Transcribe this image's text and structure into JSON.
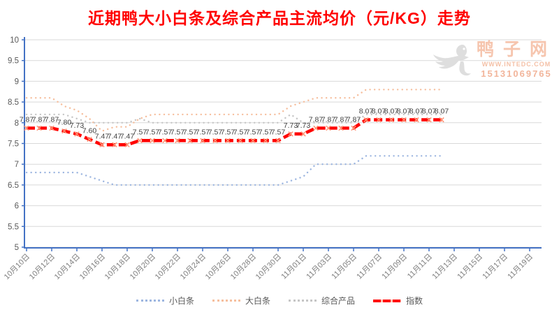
{
  "title": "近期鸭大小白条及综合产品主流均价（元/KG）走势",
  "watermark": {
    "brand": "鸭子网",
    "url": "WWW.INTEDC.COM",
    "phone": "15131069765",
    "duck_icon_color": "#DEDEDE"
  },
  "colors": {
    "title": "#FF0000",
    "axis": "#4472C4",
    "grid": "#D9D9D9",
    "tick_text": "#595959",
    "data_label": "#404040",
    "index_marker": "#FF9273"
  },
  "chart_data": {
    "type": "line",
    "title": "近期鸭大小白条及综合产品主流均价（元/KG）走势",
    "ylabel": "",
    "xlabel": "",
    "ylim": [
      5,
      10
    ],
    "y_tick_step": 0.5,
    "y_tick_labels": [
      "10",
      "9.5",
      "9",
      "8.5",
      "8",
      "7.5",
      "7",
      "6.5",
      "6",
      "5.5",
      "5"
    ],
    "grid": "horizontal",
    "legend_position": "bottom",
    "x_axis_labels": [
      "10月10日",
      "10月12日",
      "10月14日",
      "10月16日",
      "10月18日",
      "10月20日",
      "10月22日",
      "10月24日",
      "10月26日",
      "10月28日",
      "10月30日",
      "11月01日",
      "11月03日",
      "11月05日",
      "11月07日",
      "11月09日",
      "11月11日",
      "11月13日",
      "11月15日",
      "11月17日",
      "11月19日"
    ],
    "dates": [
      "10月10日",
      "10月11日",
      "10月12日",
      "10月13日",
      "10月14日",
      "10月15日",
      "10月16日",
      "10月17日",
      "10月18日",
      "10月19日",
      "10月20日",
      "10月21日",
      "10月22日",
      "10月23日",
      "10月24日",
      "10月25日",
      "10月26日",
      "10月27日",
      "10月28日",
      "10月29日",
      "10月30日",
      "10月31日",
      "11月01日",
      "11月02日",
      "11月03日",
      "11月04日",
      "11月05日",
      "11月06日",
      "11月07日",
      "11月08日",
      "11月09日",
      "11月10日",
      "11月11日",
      "11月12日"
    ],
    "series": [
      {
        "name": "小白条",
        "color": "#9DB6E0",
        "style": "dotted",
        "values": [
          6.8,
          6.8,
          6.8,
          6.8,
          6.8,
          6.7,
          6.6,
          6.5,
          6.5,
          6.5,
          6.5,
          6.5,
          6.5,
          6.5,
          6.5,
          6.5,
          6.5,
          6.5,
          6.5,
          6.5,
          6.5,
          6.6,
          6.7,
          7.0,
          7.0,
          7.0,
          7.0,
          7.2,
          7.2,
          7.2,
          7.2,
          7.2,
          7.2,
          7.2
        ]
      },
      {
        "name": "大白条",
        "color": "#F6BF9E",
        "style": "dotted",
        "values": [
          8.6,
          8.6,
          8.6,
          8.4,
          8.3,
          8.1,
          7.8,
          7.9,
          7.9,
          8.1,
          8.2,
          8.2,
          8.2,
          8.2,
          8.2,
          8.2,
          8.2,
          8.2,
          8.2,
          8.2,
          8.2,
          8.4,
          8.5,
          8.6,
          8.6,
          8.6,
          8.6,
          8.8,
          8.8,
          8.8,
          8.8,
          8.8,
          8.8,
          8.8
        ]
      },
      {
        "name": "综合产品",
        "color": "#C6C6C6",
        "style": "dotted",
        "values": [
          8.2,
          8.2,
          8.2,
          8.2,
          8.1,
          8.0,
          8.0,
          8.0,
          8.0,
          8.1,
          8.0,
          8.0,
          8.0,
          8.0,
          8.0,
          8.0,
          8.0,
          8.0,
          8.0,
          8.0,
          8.0,
          8.2,
          8.0,
          8.0,
          8.0,
          8.0,
          8.0,
          8.2,
          8.2,
          8.2,
          8.2,
          8.2,
          8.2,
          8.2
        ]
      },
      {
        "name": "指数",
        "color": "#FF0000",
        "style": "dashed-thick-x",
        "show_data_labels": true,
        "values": [
          7.87,
          7.87,
          7.87,
          7.8,
          7.73,
          7.6,
          7.47,
          7.47,
          7.47,
          7.57,
          7.57,
          7.57,
          7.57,
          7.57,
          7.57,
          7.57,
          7.57,
          7.57,
          7.57,
          7.57,
          7.57,
          7.73,
          7.73,
          7.87,
          7.87,
          7.87,
          7.87,
          8.07,
          8.07,
          8.07,
          8.07,
          8.07,
          8.07,
          8.07
        ]
      }
    ]
  }
}
